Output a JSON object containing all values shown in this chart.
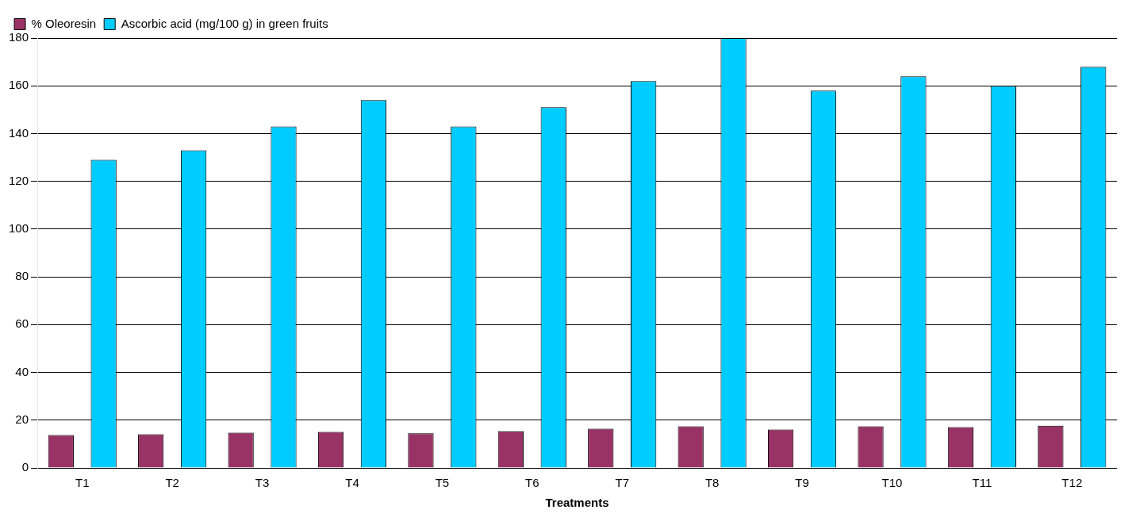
{
  "chart_data": {
    "type": "bar",
    "xlabel": "Treatments",
    "categories": [
      "T1",
      "T2",
      "T3",
      "T4",
      "T5",
      "T6",
      "T7",
      "T8",
      "T9",
      "T10",
      "T11",
      "T12"
    ],
    "series": [
      {
        "name": "% Oleoresin",
        "color": "#993366",
        "values": [
          13.8,
          14.1,
          14.8,
          15.1,
          14.5,
          15.4,
          16.4,
          17.4,
          16.1,
          17.4,
          17.1,
          17.7
        ]
      },
      {
        "name": "Ascorbic acid (mg/100 g) in green fruits",
        "color": "#00ccff",
        "values": [
          129,
          133,
          143,
          154,
          143,
          151,
          162,
          180,
          158,
          164,
          160,
          168
        ]
      }
    ],
    "ylim": [
      0,
      180
    ],
    "yticks": [
      0,
      20,
      40,
      60,
      80,
      100,
      120,
      140,
      160,
      180
    ],
    "grid": "y",
    "legend": "top left"
  }
}
